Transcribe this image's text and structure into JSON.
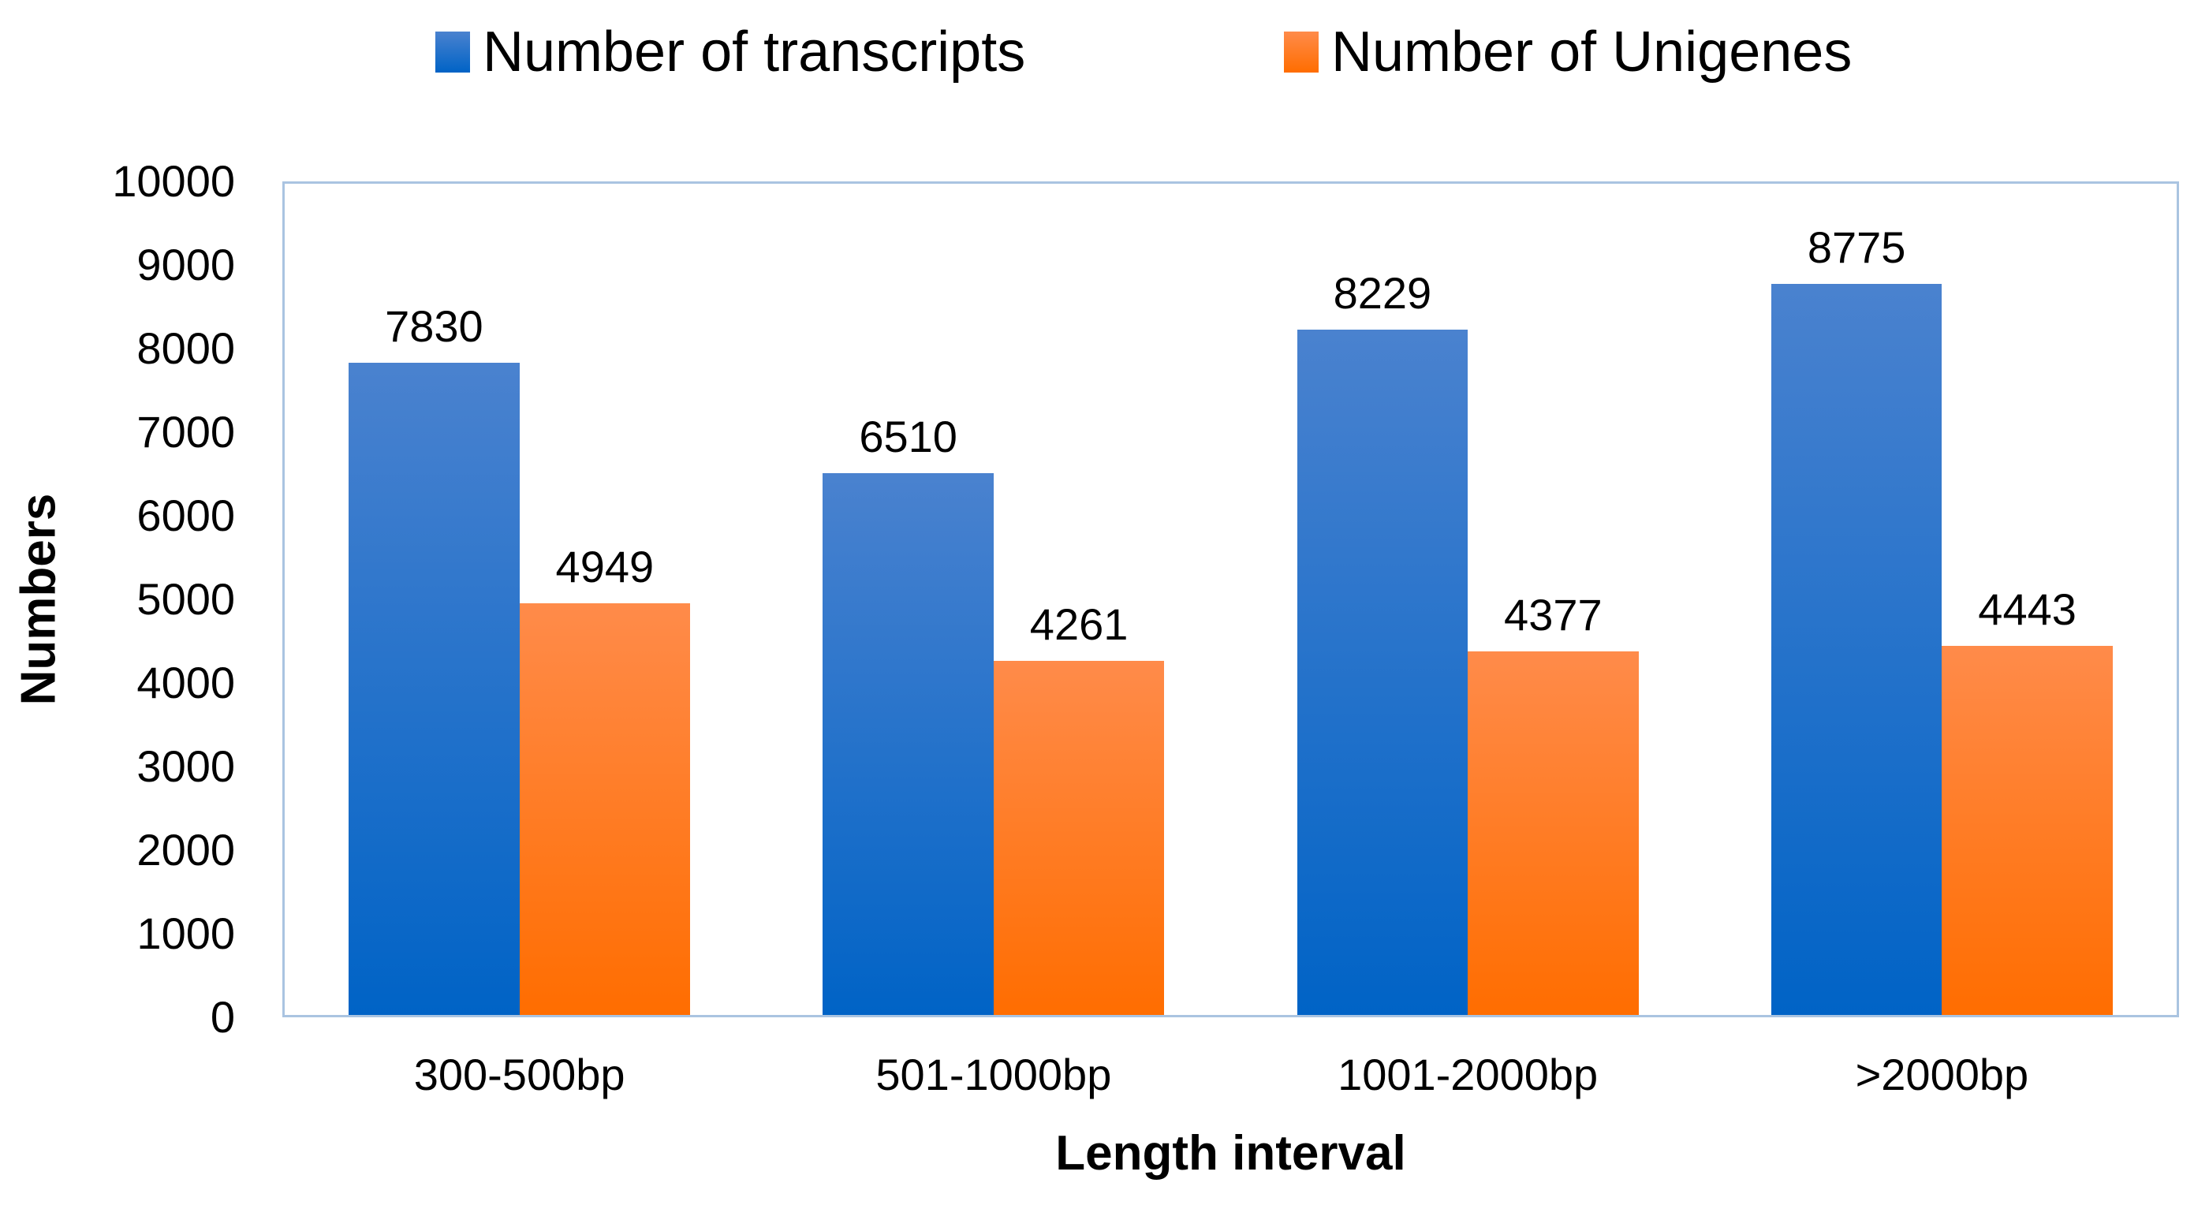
{
  "chart_data": {
    "type": "bar",
    "title": "",
    "categories": [
      "300-500bp",
      "501-1000bp",
      "1001-2000bp",
      ">2000bp"
    ],
    "series": [
      {
        "name": "Number of transcripts",
        "values": [
          7830,
          6510,
          8229,
          8775
        ],
        "color_top": "#4a82cf",
        "color_bottom": "#0063c6"
      },
      {
        "name": "Number of Unigenes",
        "values": [
          4949,
          4261,
          4377,
          4443
        ],
        "color_top": "#ff8b4a",
        "color_bottom": "#ff6d00"
      }
    ],
    "xlabel": "Length interval",
    "ylabel": "Numbers",
    "ylim": [
      0,
      10000
    ],
    "yticks": [
      "0",
      "1000",
      "2000",
      "3000",
      "4000",
      "5000",
      "6000",
      "7000",
      "8000",
      "9000",
      "10000"
    ],
    "grid": false,
    "data_labels": true,
    "legend_position": "top",
    "plot_border_color": "#aac4e1",
    "text_color": "#000000"
  }
}
